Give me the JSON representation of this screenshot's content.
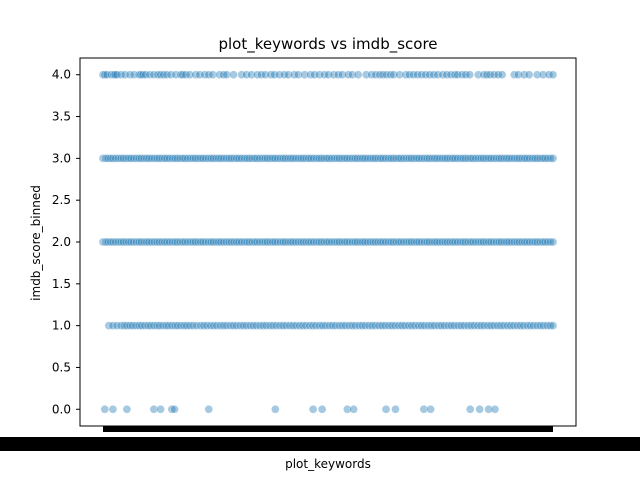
{
  "chart_data": {
    "type": "scatter",
    "title": "plot_keywords vs imdb_score",
    "xlabel": "plot_keywords",
    "ylabel": "imdb_score_binned",
    "ylim": [
      -0.2,
      4.2
    ],
    "y_ticks": [
      "0.0",
      "0.5",
      "1.0",
      "1.5",
      "2.0",
      "2.5",
      "3.0",
      "3.5",
      "4.0"
    ],
    "x_ticks_note": "x tick labels overlap into a solid black band (unreadable)",
    "point_color": "#1f77b4",
    "point_alpha": 0.4,
    "grid": false,
    "legend": "none",
    "series": [
      {
        "y": 4.0,
        "x_fraction": [
          0.0,
          0.004,
          0.009,
          0.018,
          0.024,
          0.027,
          0.031,
          0.04,
          0.049,
          0.06,
          0.069,
          0.08,
          0.084,
          0.089,
          0.095,
          0.104,
          0.113,
          0.122,
          0.128,
          0.135,
          0.142,
          0.151,
          0.162,
          0.173,
          0.177,
          0.184,
          0.193,
          0.206,
          0.215,
          0.226,
          0.235,
          0.244,
          0.259,
          0.268,
          0.275,
          0.29,
          0.308,
          0.319,
          0.33,
          0.343,
          0.352,
          0.361,
          0.373,
          0.381,
          0.392,
          0.403,
          0.412,
          0.425,
          0.434,
          0.448,
          0.461,
          0.47,
          0.481,
          0.492,
          0.501,
          0.513,
          0.523,
          0.532,
          0.545,
          0.554,
          0.567,
          0.585,
          0.597,
          0.606,
          0.615,
          0.622,
          0.63,
          0.639,
          0.646,
          0.659,
          0.673,
          0.681,
          0.69,
          0.699,
          0.708,
          0.717,
          0.726,
          0.735,
          0.744,
          0.755,
          0.764,
          0.773,
          0.782,
          0.788,
          0.798,
          0.806,
          0.815,
          0.834,
          0.846,
          0.853,
          0.86,
          0.869,
          0.878,
          0.887,
          0.914,
          0.923,
          0.936,
          0.947,
          0.965,
          0.978,
          0.991,
          1.0
        ]
      },
      {
        "y": 3.0,
        "x_fraction": [
          0.0,
          0.006,
          0.011,
          0.017,
          0.022,
          0.028,
          0.034,
          0.04,
          0.045,
          0.051,
          0.057,
          0.062,
          0.068,
          0.074,
          0.08,
          0.085,
          0.091,
          0.097,
          0.102,
          0.108,
          0.114,
          0.12,
          0.125,
          0.131,
          0.137,
          0.142,
          0.148,
          0.154,
          0.16,
          0.165,
          0.171,
          0.177,
          0.182,
          0.188,
          0.194,
          0.2,
          0.205,
          0.211,
          0.217,
          0.222,
          0.228,
          0.234,
          0.24,
          0.245,
          0.251,
          0.257,
          0.262,
          0.268,
          0.274,
          0.28,
          0.285,
          0.291,
          0.297,
          0.302,
          0.308,
          0.314,
          0.32,
          0.325,
          0.331,
          0.337,
          0.342,
          0.348,
          0.354,
          0.36,
          0.365,
          0.371,
          0.377,
          0.382,
          0.388,
          0.394,
          0.4,
          0.405,
          0.411,
          0.417,
          0.422,
          0.428,
          0.434,
          0.44,
          0.445,
          0.451,
          0.457,
          0.462,
          0.468,
          0.474,
          0.48,
          0.485,
          0.491,
          0.497,
          0.502,
          0.508,
          0.514,
          0.52,
          0.525,
          0.531,
          0.537,
          0.542,
          0.548,
          0.554,
          0.56,
          0.565,
          0.571,
          0.577,
          0.582,
          0.588,
          0.594,
          0.6,
          0.605,
          0.611,
          0.617,
          0.622,
          0.628,
          0.634,
          0.64,
          0.645,
          0.651,
          0.657,
          0.662,
          0.668,
          0.674,
          0.68,
          0.685,
          0.691,
          0.697,
          0.702,
          0.708,
          0.714,
          0.72,
          0.725,
          0.731,
          0.737,
          0.742,
          0.748,
          0.754,
          0.76,
          0.765,
          0.771,
          0.777,
          0.782,
          0.788,
          0.794,
          0.8,
          0.805,
          0.811,
          0.817,
          0.822,
          0.828,
          0.834,
          0.84,
          0.845,
          0.851,
          0.857,
          0.862,
          0.868,
          0.874,
          0.88,
          0.885,
          0.891,
          0.897,
          0.902,
          0.908,
          0.914,
          0.92,
          0.925,
          0.931,
          0.937,
          0.942,
          0.948,
          0.954,
          0.96,
          0.965,
          0.971,
          0.977,
          0.982,
          0.988,
          0.994,
          1.0
        ]
      },
      {
        "y": 2.0,
        "x_fraction": [
          0.0,
          0.006,
          0.011,
          0.017,
          0.022,
          0.028,
          0.034,
          0.04,
          0.045,
          0.051,
          0.057,
          0.062,
          0.068,
          0.074,
          0.08,
          0.085,
          0.091,
          0.097,
          0.102,
          0.108,
          0.114,
          0.12,
          0.125,
          0.131,
          0.137,
          0.142,
          0.148,
          0.154,
          0.16,
          0.165,
          0.171,
          0.177,
          0.182,
          0.188,
          0.194,
          0.2,
          0.205,
          0.211,
          0.217,
          0.222,
          0.228,
          0.234,
          0.24,
          0.245,
          0.251,
          0.257,
          0.262,
          0.268,
          0.274,
          0.28,
          0.285,
          0.291,
          0.297,
          0.302,
          0.308,
          0.314,
          0.32,
          0.325,
          0.331,
          0.337,
          0.342,
          0.348,
          0.354,
          0.36,
          0.365,
          0.371,
          0.377,
          0.382,
          0.388,
          0.394,
          0.4,
          0.405,
          0.411,
          0.417,
          0.422,
          0.428,
          0.434,
          0.44,
          0.445,
          0.451,
          0.457,
          0.462,
          0.468,
          0.474,
          0.48,
          0.485,
          0.491,
          0.497,
          0.502,
          0.508,
          0.514,
          0.52,
          0.525,
          0.531,
          0.537,
          0.542,
          0.548,
          0.554,
          0.56,
          0.565,
          0.571,
          0.577,
          0.582,
          0.588,
          0.594,
          0.6,
          0.605,
          0.611,
          0.617,
          0.622,
          0.628,
          0.634,
          0.64,
          0.645,
          0.651,
          0.657,
          0.662,
          0.668,
          0.674,
          0.68,
          0.685,
          0.691,
          0.697,
          0.702,
          0.708,
          0.714,
          0.72,
          0.725,
          0.731,
          0.737,
          0.742,
          0.748,
          0.754,
          0.76,
          0.765,
          0.771,
          0.777,
          0.782,
          0.788,
          0.794,
          0.8,
          0.805,
          0.811,
          0.817,
          0.822,
          0.828,
          0.834,
          0.84,
          0.845,
          0.851,
          0.857,
          0.862,
          0.868,
          0.874,
          0.88,
          0.885,
          0.891,
          0.897,
          0.902,
          0.908,
          0.914,
          0.92,
          0.925,
          0.931,
          0.937,
          0.942,
          0.948,
          0.954,
          0.96,
          0.965,
          0.971,
          0.977,
          0.982,
          0.988,
          0.994,
          1.0
        ]
      },
      {
        "y": 1.0,
        "x_fraction": [
          0.013,
          0.022,
          0.031,
          0.04,
          0.047,
          0.053,
          0.06,
          0.066,
          0.073,
          0.08,
          0.086,
          0.093,
          0.1,
          0.106,
          0.113,
          0.12,
          0.126,
          0.133,
          0.14,
          0.146,
          0.153,
          0.16,
          0.166,
          0.173,
          0.18,
          0.186,
          0.193,
          0.2,
          0.208,
          0.217,
          0.224,
          0.231,
          0.239,
          0.246,
          0.253,
          0.261,
          0.268,
          0.275,
          0.283,
          0.29,
          0.297,
          0.305,
          0.312,
          0.319,
          0.327,
          0.334,
          0.341,
          0.349,
          0.356,
          0.363,
          0.371,
          0.378,
          0.385,
          0.393,
          0.4,
          0.407,
          0.415,
          0.422,
          0.429,
          0.437,
          0.444,
          0.451,
          0.459,
          0.466,
          0.473,
          0.481,
          0.488,
          0.495,
          0.503,
          0.51,
          0.517,
          0.525,
          0.532,
          0.539,
          0.547,
          0.554,
          0.561,
          0.569,
          0.576,
          0.583,
          0.591,
          0.598,
          0.605,
          0.613,
          0.62,
          0.627,
          0.635,
          0.642,
          0.649,
          0.657,
          0.664,
          0.671,
          0.679,
          0.686,
          0.693,
          0.701,
          0.708,
          0.715,
          0.723,
          0.73,
          0.737,
          0.745,
          0.752,
          0.759,
          0.767,
          0.774,
          0.781,
          0.789,
          0.796,
          0.803,
          0.811,
          0.818,
          0.825,
          0.833,
          0.84,
          0.847,
          0.855,
          0.862,
          0.869,
          0.877,
          0.884,
          0.891,
          0.899,
          0.906,
          0.913,
          0.921,
          0.928,
          0.935,
          0.943,
          0.95,
          0.957,
          0.965,
          0.972,
          0.979,
          0.987,
          0.994,
          1.0
        ]
      },
      {
        "y": 0.0,
        "x_fraction": [
          0.004,
          0.022,
          0.053,
          0.113,
          0.128,
          0.153,
          0.159,
          0.235,
          0.383,
          0.467,
          0.487,
          0.543,
          0.557,
          0.629,
          0.65,
          0.713,
          0.728,
          0.816,
          0.837,
          0.857,
          0.871
        ]
      }
    ]
  }
}
